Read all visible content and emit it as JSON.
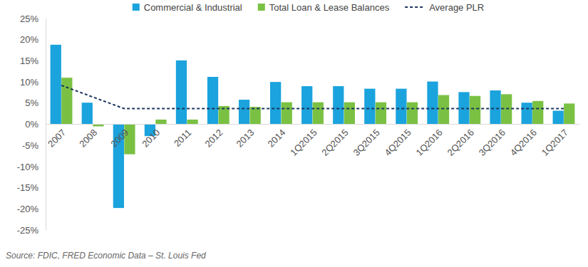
{
  "chart_data": {
    "type": "bar",
    "source": "Source: FDIC, FRED Economic Data – St. Louis Fed",
    "categories": [
      "2007",
      "2008",
      "2009",
      "2010",
      "2011",
      "2012",
      "2013",
      "2014",
      "1Q2015",
      "2Q2015",
      "3Q2015",
      "4Q2015",
      "1Q2016",
      "2Q2016",
      "3Q2016",
      "4Q2016",
      "1Q2017"
    ],
    "series": [
      {
        "name": "Commercial & Industrial",
        "type": "bar",
        "color": "#1ba3dd",
        "values": [
          18.8,
          5.1,
          -19.8,
          -2.8,
          15.1,
          11.2,
          5.8,
          10.0,
          9.0,
          9.0,
          8.4,
          8.4,
          10.1,
          7.6,
          8.0,
          5.1,
          3.2
        ]
      },
      {
        "name": "Total Loan & Lease Balances",
        "type": "bar",
        "color": "#7ac143",
        "values": [
          11.0,
          -0.5,
          -7.1,
          1.1,
          1.1,
          4.3,
          4.1,
          5.2,
          5.2,
          5.2,
          5.2,
          5.2,
          6.9,
          6.7,
          7.1,
          5.5,
          4.9
        ]
      },
      {
        "name": "Average PLR",
        "type": "line",
        "color": "#1b365d",
        "line_style": "dashed",
        "values": [
          9.2,
          6.45,
          3.7,
          3.7,
          3.7,
          3.7,
          3.7,
          3.7,
          3.7,
          3.7,
          3.7,
          3.7,
          3.7,
          3.7,
          3.7,
          3.7,
          3.7
        ]
      }
    ],
    "ylim": [
      -25,
      25
    ],
    "yticks": [
      {
        "value": -25,
        "label": "-25%"
      },
      {
        "value": -20,
        "label": "-20%"
      },
      {
        "value": -15,
        "label": "-15%"
      },
      {
        "value": -10,
        "label": "-10%"
      },
      {
        "value": -5,
        "label": "-5%"
      },
      {
        "value": 0,
        "label": "0%"
      },
      {
        "value": 5,
        "label": "5%"
      },
      {
        "value": 10,
        "label": "10%"
      },
      {
        "value": 15,
        "label": "15%"
      },
      {
        "value": 20,
        "label": "20%"
      },
      {
        "value": 25,
        "label": "25%"
      }
    ],
    "grid": false,
    "legend": "top"
  }
}
